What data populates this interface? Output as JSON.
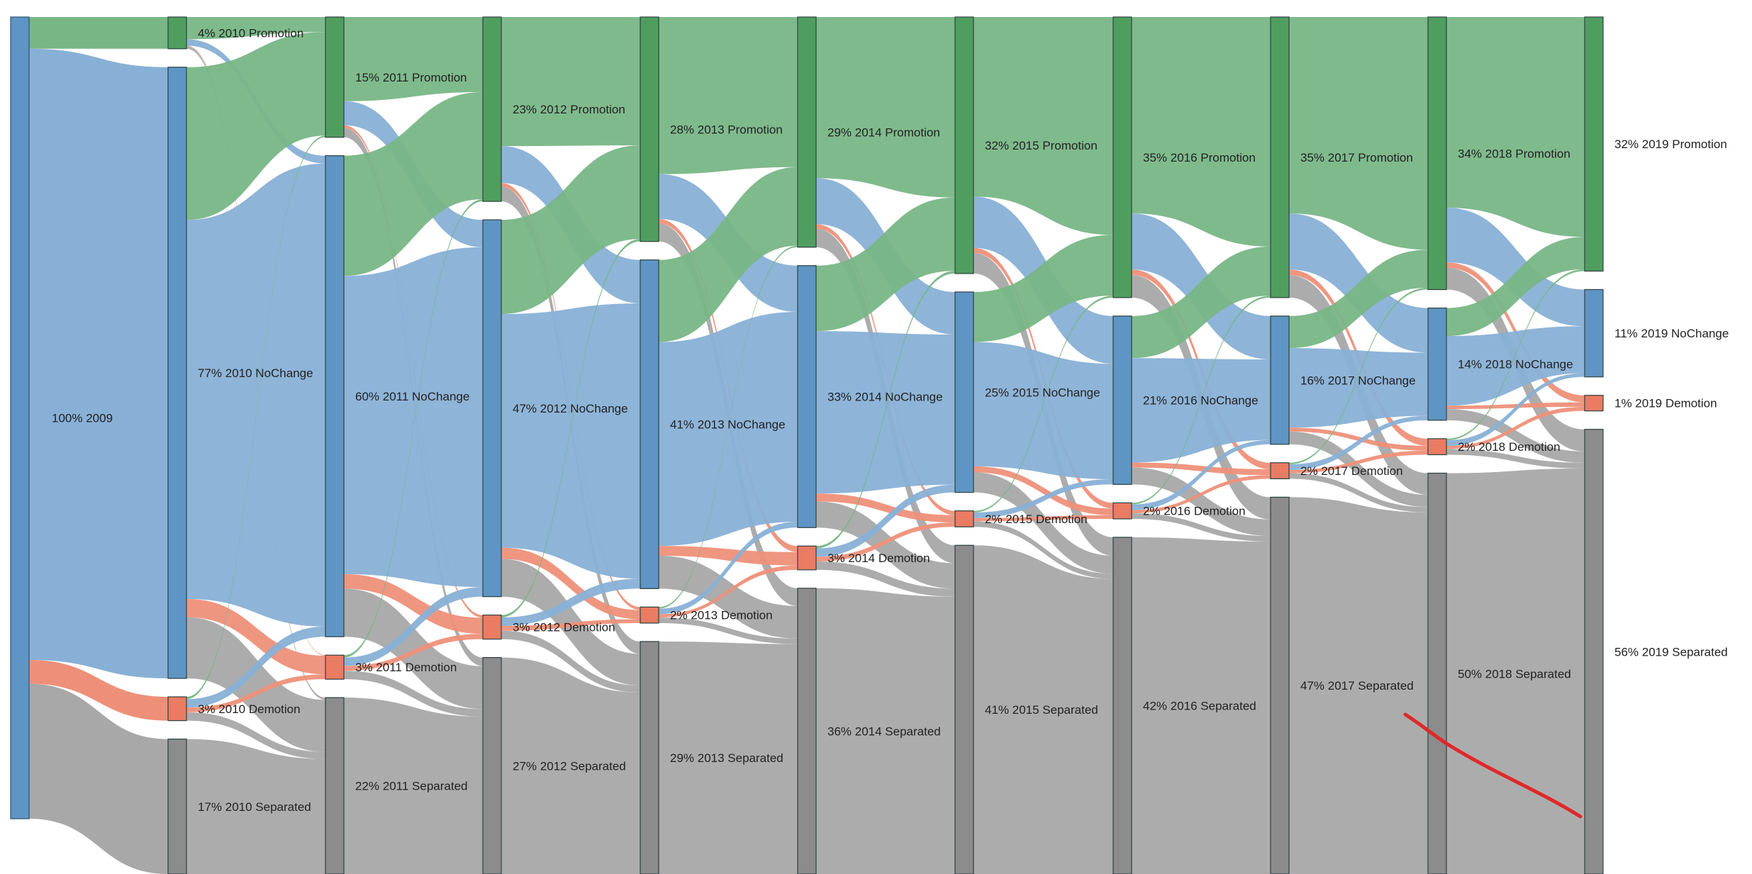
{
  "chart_data": {
    "type": "sankey",
    "title": "",
    "years": [
      "2009",
      "2010",
      "2011",
      "2012",
      "2013",
      "2014",
      "2015",
      "2016",
      "2017",
      "2018",
      "2019"
    ],
    "categories": [
      "Promotion",
      "NoChange",
      "Demotion",
      "Separated"
    ],
    "colors": {
      "Promotion": "#4f9e5f",
      "NoChange": "#5e95c4",
      "Demotion": "#e97c62",
      "Separated": "#8c8c8c",
      "Root": "#5e95c4",
      "link_Promotion": "#78b686",
      "link_NoChange": "#88b0d6",
      "link_Demotion": "#ee9079",
      "link_Separated": "#a8a8a8",
      "annotation": "#e0282a"
    },
    "root": {
      "label": "100% 2009",
      "value": 100
    },
    "nodes": [
      [
        {
          "cat": "Promotion",
          "value": 4,
          "label": "4% 2010 Promotion"
        },
        {
          "cat": "NoChange",
          "value": 77,
          "label": "77% 2010 NoChange"
        },
        {
          "cat": "Demotion",
          "value": 3,
          "label": "3% 2010 Demotion"
        },
        {
          "cat": "Separated",
          "value": 17,
          "label": "17% 2010 Separated"
        }
      ],
      [
        {
          "cat": "Promotion",
          "value": 15,
          "label": "15% 2011 Promotion"
        },
        {
          "cat": "NoChange",
          "value": 60,
          "label": "60% 2011 NoChange"
        },
        {
          "cat": "Demotion",
          "value": 3,
          "label": "3% 2011 Demotion"
        },
        {
          "cat": "Separated",
          "value": 22,
          "label": "22% 2011 Separated"
        }
      ],
      [
        {
          "cat": "Promotion",
          "value": 23,
          "label": "23% 2012 Promotion"
        },
        {
          "cat": "NoChange",
          "value": 47,
          "label": "47% 2012 NoChange"
        },
        {
          "cat": "Demotion",
          "value": 3,
          "label": "3% 2012 Demotion"
        },
        {
          "cat": "Separated",
          "value": 27,
          "label": "27% 2012 Separated"
        }
      ],
      [
        {
          "cat": "Promotion",
          "value": 28,
          "label": "28% 2013 Promotion"
        },
        {
          "cat": "NoChange",
          "value": 41,
          "label": "41% 2013 NoChange"
        },
        {
          "cat": "Demotion",
          "value": 2,
          "label": "2% 2013 Demotion"
        },
        {
          "cat": "Separated",
          "value": 29,
          "label": "29% 2013 Separated"
        }
      ],
      [
        {
          "cat": "Promotion",
          "value": 29,
          "label": "29% 2014 Promotion"
        },
        {
          "cat": "NoChange",
          "value": 33,
          "label": "33% 2014 NoChange"
        },
        {
          "cat": "Demotion",
          "value": 3,
          "label": "3% 2014 Demotion"
        },
        {
          "cat": "Separated",
          "value": 36,
          "label": "36% 2014 Separated"
        }
      ],
      [
        {
          "cat": "Promotion",
          "value": 32,
          "label": "32% 2015 Promotion"
        },
        {
          "cat": "NoChange",
          "value": 25,
          "label": "25% 2015 NoChange"
        },
        {
          "cat": "Demotion",
          "value": 2,
          "label": "2% 2015 Demotion"
        },
        {
          "cat": "Separated",
          "value": 41,
          "label": "41% 2015 Separated"
        }
      ],
      [
        {
          "cat": "Promotion",
          "value": 35,
          "label": "35% 2016 Promotion"
        },
        {
          "cat": "NoChange",
          "value": 21,
          "label": "21% 2016 NoChange"
        },
        {
          "cat": "Demotion",
          "value": 2,
          "label": "2% 2016 Demotion"
        },
        {
          "cat": "Separated",
          "value": 42,
          "label": "42% 2016 Separated"
        }
      ],
      [
        {
          "cat": "Promotion",
          "value": 35,
          "label": "35% 2017 Promotion"
        },
        {
          "cat": "NoChange",
          "value": 16,
          "label": "16% 2017 NoChange"
        },
        {
          "cat": "Demotion",
          "value": 2,
          "label": "2% 2017 Demotion"
        },
        {
          "cat": "Separated",
          "value": 47,
          "label": "47% 2017 Separated"
        }
      ],
      [
        {
          "cat": "Promotion",
          "value": 34,
          "label": "34% 2018 Promotion"
        },
        {
          "cat": "NoChange",
          "value": 14,
          "label": "14% 2018 NoChange"
        },
        {
          "cat": "Demotion",
          "value": 2,
          "label": "2% 2018 Demotion"
        },
        {
          "cat": "Separated",
          "value": 50,
          "label": "50% 2018 Separated"
        }
      ],
      [
        {
          "cat": "Promotion",
          "value": 32,
          "label": "32% 2019 Promotion"
        },
        {
          "cat": "NoChange",
          "value": 11,
          "label": "11% 2019 NoChange"
        },
        {
          "cat": "Demotion",
          "value": 1,
          "label": "1% 2019 Demotion"
        },
        {
          "cat": "Separated",
          "value": 56,
          "label": "56% 2019 Separated"
        }
      ]
    ],
    "annotation": {
      "type": "red-freehand-stroke"
    }
  }
}
